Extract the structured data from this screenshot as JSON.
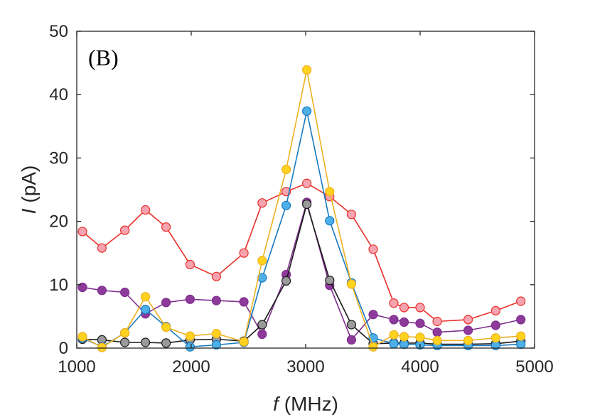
{
  "chart_data": {
    "type": "line",
    "panel_label": "(B)",
    "xlabel_var": "f",
    "xlabel_unit": "(MHz)",
    "ylabel_var": "I",
    "ylabel_unit": "(pA)",
    "xlim": [
      1000,
      5000
    ],
    "ylim": [
      0,
      50
    ],
    "xticks": [
      1000,
      2000,
      3000,
      4000,
      5000
    ],
    "yticks": [
      0,
      10,
      20,
      30,
      40,
      50
    ],
    "grid": false,
    "series": [
      {
        "name": "red",
        "line_color": "#e8302a",
        "marker_fill": "#f7a3b0",
        "marker_edge": "#e8302a",
        "x": [
          1050,
          1220,
          1420,
          1600,
          1780,
          1990,
          2220,
          2460,
          2620,
          2830,
          3010,
          3210,
          3400,
          3590,
          3770,
          3860,
          4000,
          4150,
          4420,
          4660,
          4880
        ],
        "y": [
          18.4,
          15.8,
          18.6,
          21.8,
          19.1,
          13.2,
          11.3,
          15.0,
          22.9,
          24.7,
          26.0,
          23.9,
          21.1,
          15.6,
          7.1,
          6.4,
          6.4,
          4.2,
          4.5,
          5.9,
          7.4
        ]
      },
      {
        "name": "purple",
        "line_color": "#7e2f8e",
        "marker_fill": "#8e3a9a",
        "marker_edge": "#7e2f8e",
        "x": [
          1050,
          1220,
          1420,
          1600,
          1780,
          1990,
          2220,
          2460,
          2620,
          2830,
          3010,
          3210,
          3400,
          3590,
          3770,
          3860,
          4000,
          4150,
          4420,
          4660,
          4880
        ],
        "y": [
          9.6,
          9.1,
          8.8,
          5.4,
          7.2,
          7.7,
          7.5,
          7.3,
          2.2,
          11.6,
          23.0,
          9.9,
          1.3,
          5.3,
          4.5,
          4.1,
          3.9,
          2.5,
          2.8,
          3.6,
          4.5
        ]
      },
      {
        "name": "black",
        "line_color": "#1a1a1a",
        "marker_fill": "#9a9a9a",
        "marker_edge": "#1a1a1a",
        "x": [
          1050,
          1220,
          1420,
          1600,
          1780,
          1990,
          2220,
          2460,
          2620,
          2830,
          3010,
          3210,
          3400,
          3590,
          3770,
          3860,
          4000,
          4150,
          4420,
          4660,
          4880
        ],
        "y": [
          1.4,
          1.3,
          0.9,
          0.9,
          0.8,
          1.3,
          1.4,
          1.1,
          3.7,
          10.6,
          22.7,
          10.7,
          3.7,
          0.7,
          0.8,
          0.8,
          0.8,
          0.6,
          0.6,
          0.7,
          1.1
        ]
      },
      {
        "name": "blue",
        "line_color": "#1a7abf",
        "marker_fill": "#4db0e8",
        "marker_edge": "#1a7abf",
        "x": [
          1050,
          1220,
          1420,
          1600,
          1780,
          1990,
          2220,
          2460,
          2620,
          2830,
          3010,
          3210,
          3400,
          3590,
          3770,
          3860,
          4000,
          4150,
          4420,
          4660,
          4880
        ],
        "y": [
          1.6,
          0.2,
          2.4,
          6.1,
          3.4,
          0.2,
          0.5,
          0.9,
          11.1,
          22.5,
          37.4,
          20.1,
          10.3,
          1.6,
          0.7,
          0.6,
          0.5,
          0.4,
          0.4,
          0.4,
          0.6
        ]
      },
      {
        "name": "yellow",
        "line_color": "#edb120",
        "marker_fill": "#ffd21f",
        "marker_edge": "#edb120",
        "x": [
          1050,
          1220,
          1420,
          1600,
          1780,
          1990,
          2220,
          2460,
          2620,
          2830,
          3010,
          3210,
          3400,
          3590,
          3770,
          3860,
          4000,
          4150,
          4420,
          4660,
          4880
        ],
        "y": [
          1.8,
          0.1,
          2.4,
          8.1,
          3.3,
          1.9,
          2.3,
          1.0,
          13.8,
          28.2,
          43.9,
          24.7,
          10.1,
          0.2,
          2.1,
          1.8,
          1.7,
          1.2,
          1.2,
          1.6,
          1.9
        ]
      }
    ]
  }
}
